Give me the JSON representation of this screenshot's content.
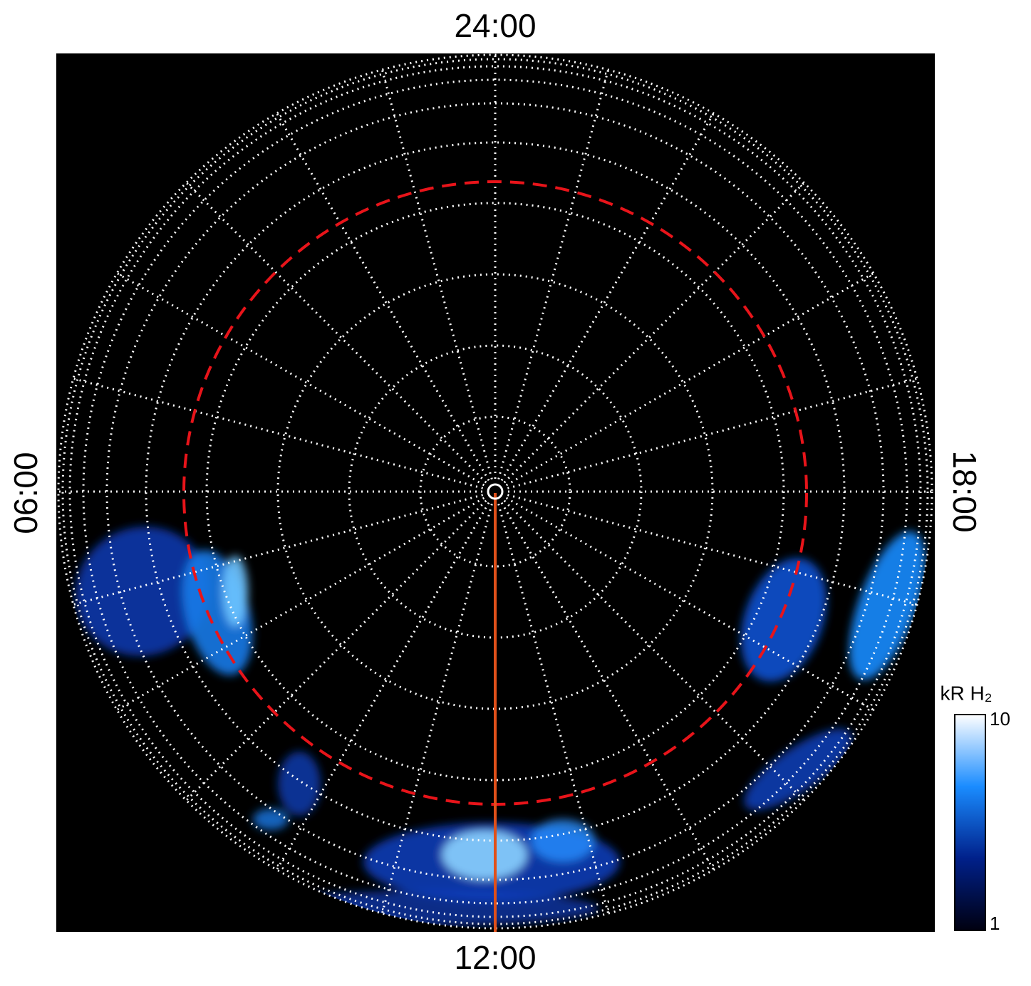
{
  "chart_data": {
    "type": "polar-image",
    "labels": {
      "top": "24:00",
      "bottom": "12:00",
      "left": "06:00",
      "right": "18:00"
    },
    "colorbar": {
      "title": "kR H₂",
      "clim": [
        1,
        10
      ],
      "ticks": [
        1,
        10
      ],
      "log": true,
      "colors": [
        "#000010",
        "#00208a",
        "#1a8cff",
        "#ffffff"
      ]
    }
  }
}
